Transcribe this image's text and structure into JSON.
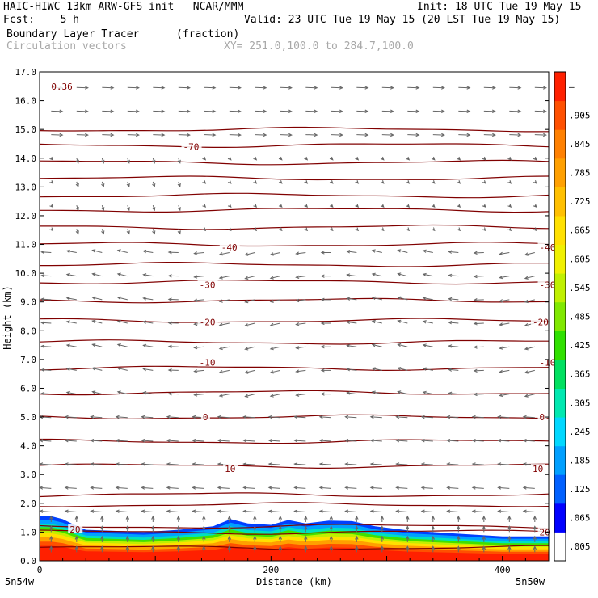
{
  "header": {
    "model_line": "HAIC-HIWC 13km ARW-GFS init   NCAR/MMM",
    "init_line": "Init: 18 UTC Tue 19 May 15",
    "fcst_line": "Fcst:    5 h",
    "valid_line": "Valid: 23 UTC Tue 19 May 15 (20 LST Tue 19 May 15)",
    "field_name": "Boundary Layer Tracer",
    "field_units": "(fraction)",
    "vector_name": "Circulation vectors",
    "xy_range": "XY= 251.0,100.0 to 284.7,100.0"
  },
  "chart_data": {
    "type": "heatmap",
    "title": "Boundary Layer Tracer",
    "units": "(fraction)",
    "ylabel": "Height (km)",
    "xlabel": "Distance (km)",
    "x_range": [
      0,
      440
    ],
    "y_range": [
      0,
      17
    ],
    "y_ticks": [
      "0.0",
      "1.0",
      "2.0",
      "3.0",
      "4.0",
      "5.0",
      "6.0",
      "7.0",
      "8.0",
      "9.0",
      "10.0",
      "11.0",
      "12.0",
      "13.0",
      "14.0",
      "15.0",
      "16.0",
      "17.0"
    ],
    "x_ticks": [
      {
        "v": 0,
        "label": "0"
      },
      {
        "v": 200,
        "label": "200"
      },
      {
        "v": 400,
        "label": "400"
      }
    ],
    "x_end_labels": {
      "left": "5n54w",
      "right": "5n50w"
    },
    "colorbar_labels": [
      ".005",
      ".065",
      ".125",
      ".185",
      ".245",
      ".305",
      ".365",
      ".425",
      ".485",
      ".545",
      ".605",
      ".665",
      ".725",
      ".785",
      ".845",
      ".905",
      "–"
    ],
    "colorbar_colors": [
      "#ffffff",
      "#0000ff",
      "#0060ff",
      "#00a0ff",
      "#00d8ff",
      "#00e8b0",
      "#00e060",
      "#30e000",
      "#80e800",
      "#c0f000",
      "#f0f000",
      "#ffe000",
      "#ffc000",
      "#ffa000",
      "#ff8000",
      "#ff5000",
      "#ff2000"
    ],
    "contour_color": "#800000",
    "contour_labels": [
      {
        "text": "0.36",
        "x": 10,
        "y": 16.5
      },
      {
        "text": "-70",
        "x": 124,
        "y": 14.4
      },
      {
        "text": "-40",
        "x": 157,
        "y": 10.9
      },
      {
        "text": "-40",
        "x": 432,
        "y": 10.9
      },
      {
        "text": "-30",
        "x": 138,
        "y": 9.6
      },
      {
        "text": "-30",
        "x": 432,
        "y": 9.6
      },
      {
        "text": "-20",
        "x": 138,
        "y": 8.3
      },
      {
        "text": "-20",
        "x": 426,
        "y": 8.3
      },
      {
        "text": "-10",
        "x": 138,
        "y": 6.9
      },
      {
        "text": "-10",
        "x": 432,
        "y": 6.9
      },
      {
        "text": "0",
        "x": 141,
        "y": 5.0
      },
      {
        "text": "0",
        "x": 432,
        "y": 5.0
      },
      {
        "text": "10",
        "x": 160,
        "y": 3.2
      },
      {
        "text": "10",
        "x": 426,
        "y": 3.2
      },
      {
        "text": "20",
        "x": 26,
        "y": 1.1
      },
      {
        "text": "20",
        "x": 432,
        "y": 1.0
      }
    ],
    "contour_heights": [
      0.45,
      1.0,
      1.2,
      1.95,
      2.3,
      3.3,
      4.15,
      5.0,
      5.85,
      6.7,
      7.6,
      8.35,
      9.05,
      9.7,
      10.3,
      11.0,
      11.6,
      12.2,
      12.7,
      13.3,
      13.85,
      14.45,
      15.0
    ],
    "tracer_top_profile": [
      {
        "x": 0,
        "y": 1.55
      },
      {
        "x": 10,
        "y": 1.55
      },
      {
        "x": 20,
        "y": 1.45
      },
      {
        "x": 30,
        "y": 1.25
      },
      {
        "x": 40,
        "y": 1.08
      },
      {
        "x": 60,
        "y": 1.05
      },
      {
        "x": 90,
        "y": 1.0
      },
      {
        "x": 120,
        "y": 1.08
      },
      {
        "x": 150,
        "y": 1.2
      },
      {
        "x": 165,
        "y": 1.45
      },
      {
        "x": 180,
        "y": 1.3
      },
      {
        "x": 200,
        "y": 1.25
      },
      {
        "x": 215,
        "y": 1.42
      },
      {
        "x": 230,
        "y": 1.3
      },
      {
        "x": 250,
        "y": 1.4
      },
      {
        "x": 270,
        "y": 1.38
      },
      {
        "x": 290,
        "y": 1.2
      },
      {
        "x": 320,
        "y": 1.05
      },
      {
        "x": 360,
        "y": 0.95
      },
      {
        "x": 400,
        "y": 0.85
      },
      {
        "x": 440,
        "y": 0.85
      }
    ]
  }
}
